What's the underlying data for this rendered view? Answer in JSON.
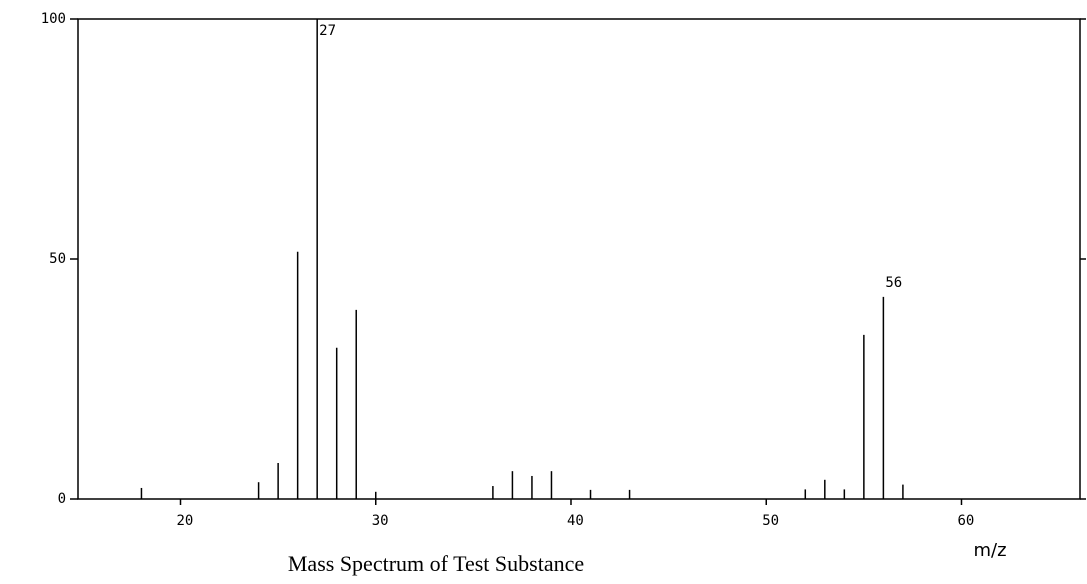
{
  "chart_data": {
    "type": "stem",
    "title": "Mass Spectrum of Test Substance",
    "x_label": "m/z",
    "x": [
      18,
      24,
      25,
      26,
      27,
      28,
      29,
      30,
      36,
      37,
      38,
      39,
      41,
      43,
      52,
      53,
      54,
      55,
      56,
      57
    ],
    "values": [
      2.3,
      3.5,
      7.5,
      51.5,
      100,
      31.5,
      39.4,
      1.5,
      2.7,
      5.8,
      4.8,
      5.8,
      1.9,
      1.9,
      2,
      4,
      2,
      34.2,
      42.1,
      3
    ],
    "color": "#000000",
    "xlim": [
      14.75,
      66.07
    ],
    "xticks": [
      20,
      30,
      40,
      50,
      60
    ],
    "ylim": [
      0,
      100
    ],
    "yticks": [
      0,
      50,
      100
    ],
    "annotations": [
      {
        "text": "27",
        "x": 27
      },
      {
        "text": "56",
        "x": 56
      }
    ]
  }
}
